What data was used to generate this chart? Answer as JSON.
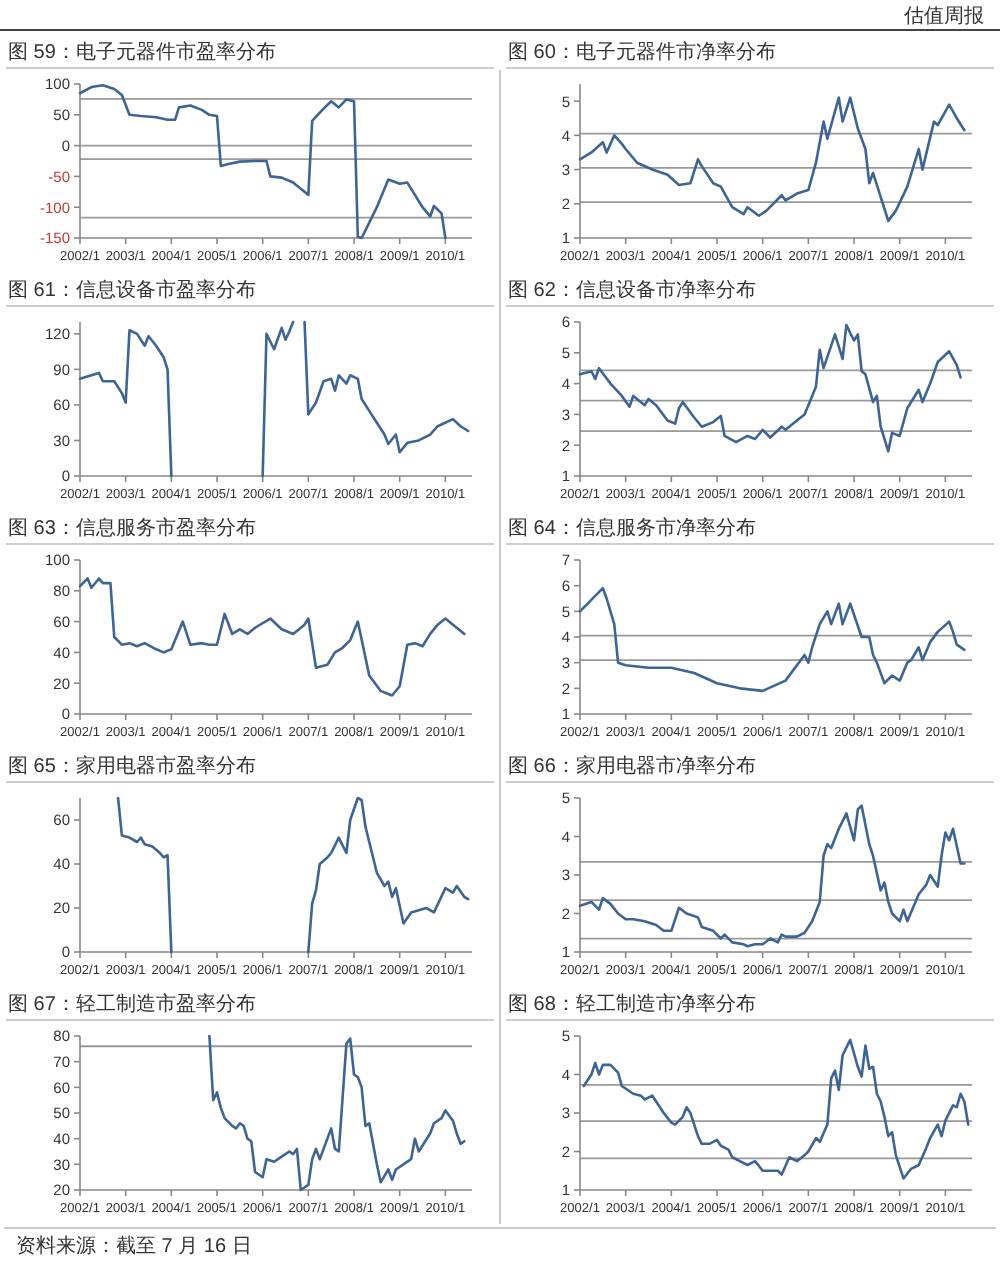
{
  "chart_data": [
    {
      "type": "line",
      "title": "图 59：电子元器件市盈率分布",
      "annotations": [
        "估值周报"
      ],
      "x": [
        "2002-01",
        "2002-04",
        "2002-07",
        "2002-10",
        "2002-12",
        "2003-02",
        "2003-05",
        "2003-09",
        "2003-12",
        "2004-02",
        "2004-03",
        "2004-06",
        "2004-09",
        "2004-11",
        "2005-01",
        "2005-02",
        "2005-04",
        "2005-07",
        "2005-11",
        "2006-02",
        "2006-03",
        "2006-06",
        "2006-09",
        "2006-11",
        "2007-01",
        "2007-02",
        "2007-05",
        "2007-07",
        "2007-09",
        "2007-11",
        "2008-01",
        "2008-02",
        "2008-03",
        "2008-05",
        "2008-07",
        "2008-08",
        "2008-10",
        "2009-01",
        "2009-03",
        "2009-05",
        "2009-07",
        "2009-09",
        "2009-10",
        "2009-12",
        "2010-01"
      ],
      "series": [
        {
          "color": "#3c6496",
          "values": [
            85,
            95,
            98,
            92,
            82,
            50,
            48,
            46,
            42,
            42,
            62,
            65,
            58,
            50,
            48,
            -33,
            -30,
            -26,
            -25,
            -25,
            -50,
            -52,
            -60,
            -70,
            -80,
            40,
            60,
            72,
            62,
            75,
            72,
            -148,
            -150,
            -125,
            -100,
            -85,
            -55,
            -62,
            -60,
            -80,
            -100,
            -115,
            -98,
            -110,
            -150
          ]
        }
      ],
      "xlim": [
        "2002-01",
        "2010-08"
      ],
      "ylim": [
        -150,
        100
      ],
      "yticks": [
        -150,
        -100,
        -50,
        0,
        50,
        100
      ],
      "xticks": [
        {
          "value": "2002-01",
          "label": "2002/1"
        },
        {
          "value": "2003-01",
          "label": "2003/1"
        },
        {
          "value": "2004-01",
          "label": "2004/1"
        },
        {
          "value": "2005-01",
          "label": "2005/1"
        },
        {
          "value": "2006-01",
          "label": "2006/1"
        },
        {
          "value": "2007-01",
          "label": "2007/1"
        },
        {
          "value": "2008-01",
          "label": "2008/1"
        },
        {
          "value": "2009-01",
          "label": "2009/1"
        },
        {
          "value": "2010-01",
          "label": "2010/1"
        }
      ],
      "ref_lines": [
        {
          "axis": "y",
          "value": 76
        },
        {
          "axis": "y",
          "value": 0
        },
        {
          "axis": "y",
          "value": -22
        },
        {
          "axis": "y",
          "value": -117
        }
      ]
    },
    {
      "type": "line",
      "title": "图 60：电子元器件市净率分布",
      "x": [
        "2002-01",
        "2002-04",
        "2002-07",
        "2002-08",
        "2002-10",
        "2002-12",
        "2003-01",
        "2003-04",
        "2003-08",
        "2003-12",
        "2004-03",
        "2004-06",
        "2004-08",
        "2004-09",
        "2004-12",
        "2005-02",
        "2005-05",
        "2005-08",
        "2005-09",
        "2005-12",
        "2006-02",
        "2006-06",
        "2006-07",
        "2006-10",
        "2007-01",
        "2007-03",
        "2007-05",
        "2007-06",
        "2007-09",
        "2007-10",
        "2007-12",
        "2008-02",
        "2008-04",
        "2008-05",
        "2008-06",
        "2008-10",
        "2008-12",
        "2009-03",
        "2009-06",
        "2009-07",
        "2009-10",
        "2009-11",
        "2010-02",
        "2010-04",
        "2010-06"
      ],
      "series": [
        {
          "color": "#3c6496",
          "values": [
            3.3,
            3.5,
            3.8,
            3.5,
            4.0,
            3.75,
            3.6,
            3.2,
            3.0,
            2.85,
            2.55,
            2.6,
            3.3,
            3.1,
            2.6,
            2.5,
            1.9,
            1.7,
            1.9,
            1.65,
            1.8,
            2.25,
            2.1,
            2.3,
            2.4,
            3.2,
            4.4,
            3.9,
            5.1,
            4.4,
            5.1,
            4.2,
            3.6,
            2.6,
            2.9,
            1.5,
            1.8,
            2.5,
            3.6,
            3.0,
            4.4,
            4.3,
            4.9,
            4.5,
            4.15
          ]
        }
      ],
      "xlim": [
        "2002-01",
        "2010-08"
      ],
      "ylim": [
        1,
        5.5
      ],
      "yticks": [
        1,
        2,
        3,
        4,
        5
      ],
      "xticks": [
        {
          "value": "2002-01",
          "label": "2002/1"
        },
        {
          "value": "2003-01",
          "label": "2003/1"
        },
        {
          "value": "2004-01",
          "label": "2004/1"
        },
        {
          "value": "2005-01",
          "label": "2005/1"
        },
        {
          "value": "2006-01",
          "label": "2006/1"
        },
        {
          "value": "2007-01",
          "label": "2007/1"
        },
        {
          "value": "2008-01",
          "label": "2008/1"
        },
        {
          "value": "2009-01",
          "label": "2009/1"
        },
        {
          "value": "2010-01",
          "label": "2010/1"
        }
      ],
      "ref_lines": [
        {
          "axis": "y",
          "value": 4.05
        },
        {
          "axis": "y",
          "value": 3.05
        },
        {
          "axis": "y",
          "value": 2.05
        }
      ]
    },
    {
      "type": "line",
      "title": "图 61：信息设备市盈率分布",
      "series": [
        {
          "color": "#3c6496",
          "x": [
            "2002-01",
            "2002-04",
            "2002-06",
            "2002-07",
            "2002-10",
            "2002-12",
            "2003-01",
            "2003-02",
            "2003-04",
            "2003-06",
            "2003-07",
            "2003-09",
            "2003-11",
            "2003-12",
            "2004-01"
          ],
          "values": [
            82,
            85,
            87,
            80,
            80,
            70,
            62,
            123,
            120,
            110,
            118,
            110,
            100,
            90,
            0
          ]
        },
        {
          "color": "#3c6496",
          "x": [
            "2006-01",
            "2006-02",
            "2006-04",
            "2006-06",
            "2006-07",
            "2006-08",
            "2006-09"
          ],
          "values": [
            0,
            120,
            107,
            125,
            115,
            122,
            130
          ]
        },
        {
          "color": "#3c6496",
          "x": [
            "2006-12",
            "2007-01",
            "2007-03",
            "2007-05",
            "2007-07",
            "2007-08",
            "2007-09",
            "2007-11",
            "2007-12",
            "2008-02",
            "2008-03",
            "2008-05",
            "2008-07",
            "2008-09",
            "2008-10",
            "2008-12",
            "2009-01",
            "2009-03",
            "2009-06",
            "2009-09",
            "2009-11",
            "2010-03",
            "2010-05",
            "2010-07"
          ],
          "values": [
            130,
            52,
            62,
            80,
            82,
            72,
            85,
            78,
            85,
            82,
            65,
            55,
            45,
            35,
            27,
            35,
            20,
            28,
            30,
            35,
            42,
            48,
            42,
            38
          ]
        }
      ],
      "xlim": [
        "2002-01",
        "2010-08"
      ],
      "ylim": [
        0,
        130
      ],
      "yticks": [
        0,
        30,
        60,
        90,
        120
      ],
      "xticks": [
        {
          "value": "2002-01",
          "label": "2002/1"
        },
        {
          "value": "2003-01",
          "label": "2003/1"
        },
        {
          "value": "2004-01",
          "label": "2004/1"
        },
        {
          "value": "2005-01",
          "label": "2005/1"
        },
        {
          "value": "2006-01",
          "label": "2006/1"
        },
        {
          "value": "2007-01",
          "label": "2007/1"
        },
        {
          "value": "2008-01",
          "label": "2008/1"
        },
        {
          "value": "2009-01",
          "label": "2009/1"
        },
        {
          "value": "2010-01",
          "label": "2010/1"
        }
      ]
    },
    {
      "type": "line",
      "title": "图 62：信息设备市净率分布",
      "x": [
        "2002-01",
        "2002-04",
        "2002-05",
        "2002-06",
        "2002-09",
        "2002-12",
        "2003-02",
        "2003-03",
        "2003-06",
        "2003-07",
        "2003-09",
        "2003-12",
        "2004-02",
        "2004-03",
        "2004-04",
        "2004-07",
        "2004-09",
        "2004-12",
        "2005-02",
        "2005-03",
        "2005-06",
        "2005-09",
        "2005-11",
        "2006-01",
        "2006-03",
        "2006-06",
        "2006-07",
        "2006-10",
        "2006-12",
        "2007-03",
        "2007-04",
        "2007-05",
        "2007-08",
        "2007-10",
        "2007-11",
        "2008-01",
        "2008-02",
        "2008-03",
        "2008-04",
        "2008-06",
        "2008-07",
        "2008-08",
        "2008-10",
        "2008-11",
        "2009-01",
        "2009-03",
        "2009-06",
        "2009-07",
        "2009-09",
        "2009-11",
        "2010-02",
        "2010-04",
        "2010-05"
      ],
      "series": [
        {
          "color": "#3c6496",
          "values": [
            4.3,
            4.4,
            4.15,
            4.5,
            4.0,
            3.6,
            3.25,
            3.6,
            3.3,
            3.5,
            3.3,
            2.8,
            2.7,
            3.2,
            3.4,
            2.9,
            2.6,
            2.75,
            2.95,
            2.3,
            2.1,
            2.3,
            2.2,
            2.5,
            2.25,
            2.6,
            2.5,
            2.8,
            3.0,
            3.9,
            5.1,
            4.5,
            5.6,
            4.8,
            5.9,
            5.4,
            5.6,
            4.4,
            4.3,
            3.4,
            3.6,
            2.6,
            1.8,
            2.4,
            2.3,
            3.2,
            3.8,
            3.4,
            4.0,
            4.7,
            5.05,
            4.6,
            4.2
          ]
        }
      ],
      "xlim": [
        "2002-01",
        "2010-08"
      ],
      "ylim": [
        1,
        6
      ],
      "yticks": [
        1,
        2,
        3,
        4,
        5,
        6
      ],
      "xticks": [
        {
          "value": "2002-01",
          "label": "2002/1"
        },
        {
          "value": "2003-01",
          "label": "2003/1"
        },
        {
          "value": "2004-01",
          "label": "2004/1"
        },
        {
          "value": "2005-01",
          "label": "2005/1"
        },
        {
          "value": "2006-01",
          "label": "2006/1"
        },
        {
          "value": "2007-01",
          "label": "2007/1"
        },
        {
          "value": "2008-01",
          "label": "2008/1"
        },
        {
          "value": "2009-01",
          "label": "2009/1"
        },
        {
          "value": "2010-01",
          "label": "2010/1"
        }
      ],
      "ref_lines": [
        {
          "axis": "y",
          "value": 4.43
        },
        {
          "axis": "y",
          "value": 3.45
        },
        {
          "axis": "y",
          "value": 2.46
        }
      ]
    },
    {
      "type": "line",
      "title": "图 63：信息服务市盈率分布",
      "x": [
        "2002-01",
        "2002-03",
        "2002-04",
        "2002-06",
        "2002-07",
        "2002-09",
        "2002-10",
        "2002-12",
        "2003-02",
        "2003-04",
        "2003-06",
        "2003-09",
        "2003-11",
        "2004-01",
        "2004-04",
        "2004-06",
        "2004-09",
        "2004-11",
        "2005-01",
        "2005-03",
        "2005-05",
        "2005-07",
        "2005-09",
        "2005-11",
        "2006-03",
        "2006-06",
        "2006-09",
        "2006-12",
        "2007-01",
        "2007-03",
        "2007-06",
        "2007-08",
        "2007-10",
        "2007-12",
        "2008-02",
        "2008-05",
        "2008-08",
        "2008-11",
        "2009-01",
        "2009-03",
        "2009-05",
        "2009-07",
        "2009-09",
        "2009-11",
        "2010-01",
        "2010-03",
        "2010-06"
      ],
      "series": [
        {
          "color": "#3c6496",
          "values": [
            83,
            88,
            82,
            88,
            85,
            85,
            50,
            45,
            46,
            44,
            46,
            42,
            40,
            42,
            60,
            45,
            46,
            45,
            45,
            65,
            52,
            55,
            52,
            56,
            62,
            55,
            52,
            58,
            62,
            30,
            32,
            40,
            43,
            48,
            60,
            25,
            15,
            12,
            18,
            45,
            46,
            44,
            52,
            58,
            62,
            58,
            52
          ]
        }
      ],
      "xlim": [
        "2002-01",
        "2010-08"
      ],
      "ylim": [
        0,
        100
      ],
      "yticks": [
        0,
        20,
        40,
        60,
        80,
        100
      ],
      "xticks": [
        {
          "value": "2002-01",
          "label": "2002/1"
        },
        {
          "value": "2003-01",
          "label": "2003/1"
        },
        {
          "value": "2004-01",
          "label": "2004/1"
        },
        {
          "value": "2005-01",
          "label": "2005/1"
        },
        {
          "value": "2006-01",
          "label": "2006/1"
        },
        {
          "value": "2007-01",
          "label": "2007/1"
        },
        {
          "value": "2008-01",
          "label": "2008/1"
        },
        {
          "value": "2009-01",
          "label": "2009/1"
        },
        {
          "value": "2010-01",
          "label": "2010/1"
        }
      ]
    },
    {
      "type": "line",
      "title": "图 64：信息服务市净率分布",
      "x": [
        "2002-01",
        "2002-03",
        "2002-05",
        "2002-07",
        "2002-08",
        "2002-10",
        "2002-11",
        "2003-01",
        "2003-07",
        "2004-01",
        "2004-07",
        "2005-01",
        "2005-07",
        "2006-01",
        "2006-07",
        "2006-12",
        "2007-01",
        "2007-02",
        "2007-04",
        "2007-06",
        "2007-07",
        "2007-09",
        "2007-10",
        "2007-12",
        "2008-03",
        "2008-05",
        "2008-06",
        "2008-07",
        "2008-09",
        "2008-11",
        "2009-01",
        "2009-03",
        "2009-04",
        "2009-06",
        "2009-07",
        "2009-09",
        "2009-11",
        "2010-02",
        "2010-03",
        "2010-04",
        "2010-06"
      ],
      "series": [
        {
          "color": "#3c6496",
          "values": [
            5.0,
            5.3,
            5.6,
            5.9,
            5.5,
            4.5,
            3.0,
            2.9,
            2.8,
            2.8,
            2.6,
            2.2,
            2.0,
            1.9,
            2.3,
            3.3,
            3.0,
            3.6,
            4.5,
            5.0,
            4.5,
            5.3,
            4.5,
            5.3,
            4.0,
            4.0,
            3.3,
            3.0,
            2.2,
            2.5,
            2.3,
            3.0,
            3.1,
            3.6,
            3.1,
            3.8,
            4.2,
            4.6,
            4.2,
            3.7,
            3.5
          ]
        }
      ],
      "xlim": [
        "2002-01",
        "2010-08"
      ],
      "ylim": [
        1,
        7
      ],
      "yticks": [
        1,
        2,
        3,
        4,
        5,
        6,
        7
      ],
      "xticks": [
        {
          "value": "2002-01",
          "label": "2002/1"
        },
        {
          "value": "2003-01",
          "label": "2003/1"
        },
        {
          "value": "2004-01",
          "label": "2004/1"
        },
        {
          "value": "2005-01",
          "label": "2005/1"
        },
        {
          "value": "2006-01",
          "label": "2006/1"
        },
        {
          "value": "2007-01",
          "label": "2007/1"
        },
        {
          "value": "2008-01",
          "label": "2008/1"
        },
        {
          "value": "2009-01",
          "label": "2009/1"
        },
        {
          "value": "2010-01",
          "label": "2010/1"
        }
      ],
      "ref_lines": [
        {
          "axis": "y",
          "value": 4.05
        },
        {
          "axis": "y",
          "value": 3.1
        }
      ]
    },
    {
      "type": "line",
      "title": "图 65：家用电器市盈率分布",
      "series": [
        {
          "color": "#3c6496",
          "x": [
            "2002-11",
            "2002-12",
            "2003-02",
            "2003-04",
            "2003-05",
            "2003-06",
            "2003-08",
            "2003-10",
            "2003-11",
            "2003-12",
            "2004-01"
          ],
          "values": [
            70,
            53,
            52,
            50,
            52,
            49,
            48,
            45,
            43,
            44,
            0
          ]
        },
        {
          "color": "#3c6496",
          "x": [
            "2007-01",
            "2007-02",
            "2007-03",
            "2007-04",
            "2007-06",
            "2007-07",
            "2007-09",
            "2007-11",
            "2007-12",
            "2008-02",
            "2008-03",
            "2008-04",
            "2008-05",
            "2008-07",
            "2008-09",
            "2008-10",
            "2008-11",
            "2008-12",
            "2009-02",
            "2009-04",
            "2009-08",
            "2009-10",
            "2010-01",
            "2010-03",
            "2010-04",
            "2010-06",
            "2010-07"
          ],
          "values": [
            0,
            22,
            28,
            40,
            43,
            45,
            52,
            45,
            60,
            70,
            69,
            57,
            50,
            36,
            30,
            32,
            25,
            29,
            13,
            18,
            20,
            18,
            29,
            27,
            30,
            25,
            24
          ]
        }
      ],
      "xlim": [
        "2002-01",
        "2010-08"
      ],
      "ylim": [
        0,
        70
      ],
      "yticks": [
        0,
        20,
        40,
        60
      ],
      "xticks": [
        {
          "value": "2002-01",
          "label": "2002/1"
        },
        {
          "value": "2003-01",
          "label": "2003/1"
        },
        {
          "value": "2004-01",
          "label": "2004/1"
        },
        {
          "value": "2005-01",
          "label": "2005/1"
        },
        {
          "value": "2006-01",
          "label": "2006/1"
        },
        {
          "value": "2007-01",
          "label": "2007/1"
        },
        {
          "value": "2008-01",
          "label": "2008/1"
        },
        {
          "value": "2009-01",
          "label": "2009/1"
        },
        {
          "value": "2010-01",
          "label": "2010/1"
        }
      ]
    },
    {
      "type": "line",
      "title": "图 66：家用电器市净率分布",
      "x": [
        "2002-01",
        "2002-04",
        "2002-06",
        "2002-07",
        "2002-09",
        "2002-11",
        "2003-01",
        "2003-03",
        "2003-06",
        "2003-09",
        "2003-11",
        "2004-01",
        "2004-03",
        "2004-05",
        "2004-08",
        "2004-09",
        "2004-12",
        "2005-02",
        "2005-03",
        "2005-05",
        "2005-08",
        "2005-09",
        "2005-11",
        "2006-01",
        "2006-03",
        "2006-05",
        "2006-06",
        "2006-07",
        "2006-10",
        "2006-12",
        "2007-02",
        "2007-04",
        "2007-05",
        "2007-06",
        "2007-07",
        "2007-09",
        "2007-11",
        "2008-01",
        "2008-02",
        "2008-03",
        "2008-05",
        "2008-06",
        "2008-08",
        "2008-09",
        "2008-10",
        "2008-11",
        "2009-01",
        "2009-02",
        "2009-03",
        "2009-06",
        "2009-08",
        "2009-09",
        "2009-11",
        "2009-12",
        "2010-01",
        "2010-02",
        "2010-03",
        "2010-05",
        "2010-06"
      ],
      "series": [
        {
          "color": "#3c6496",
          "values": [
            2.2,
            2.3,
            2.1,
            2.4,
            2.25,
            2.0,
            1.85,
            1.85,
            1.8,
            1.7,
            1.55,
            1.55,
            2.15,
            2.0,
            1.9,
            1.65,
            1.55,
            1.35,
            1.45,
            1.25,
            1.2,
            1.15,
            1.2,
            1.2,
            1.35,
            1.25,
            1.45,
            1.4,
            1.4,
            1.5,
            1.8,
            2.3,
            3.5,
            3.8,
            3.7,
            4.2,
            4.6,
            3.9,
            4.7,
            4.8,
            3.8,
            3.5,
            2.6,
            2.8,
            2.3,
            2.0,
            1.8,
            2.1,
            1.8,
            2.5,
            2.75,
            3.0,
            2.7,
            3.5,
            4.1,
            3.9,
            4.2,
            3.3,
            3.3
          ]
        }
      ],
      "xlim": [
        "2002-01",
        "2010-08"
      ],
      "ylim": [
        1,
        5
      ],
      "yticks": [
        1,
        2,
        3,
        4,
        5
      ],
      "xticks": [
        {
          "value": "2002-01",
          "label": "2002/1"
        },
        {
          "value": "2003-01",
          "label": "2003/1"
        },
        {
          "value": "2004-01",
          "label": "2004/1"
        },
        {
          "value": "2005-01",
          "label": "2005/1"
        },
        {
          "value": "2006-01",
          "label": "2006/1"
        },
        {
          "value": "2007-01",
          "label": "2007/1"
        },
        {
          "value": "2008-01",
          "label": "2008/1"
        },
        {
          "value": "2009-01",
          "label": "2009/1"
        },
        {
          "value": "2010-01",
          "label": "2010/1"
        }
      ],
      "ref_lines": [
        {
          "axis": "y",
          "value": 3.34
        },
        {
          "axis": "y",
          "value": 2.35
        },
        {
          "axis": "y",
          "value": 1.35
        }
      ]
    },
    {
      "type": "line",
      "title": "图 67：轻工制造市盈率分布",
      "x": [
        "2004-11",
        "2004-12",
        "2005-01",
        "2005-02",
        "2005-03",
        "2005-05",
        "2005-06",
        "2005-07",
        "2005-08",
        "2005-09",
        "2005-10",
        "2005-11",
        "2006-01",
        "2006-02",
        "2006-04",
        "2006-06",
        "2006-08",
        "2006-09",
        "2006-10",
        "2006-11",
        "2007-01",
        "2007-02",
        "2007-03",
        "2007-04",
        "2007-06",
        "2007-07",
        "2007-08",
        "2007-09",
        "2007-11",
        "2007-12",
        "2008-01",
        "2008-02",
        "2008-03",
        "2008-04",
        "2008-05",
        "2008-06",
        "2008-07",
        "2008-08",
        "2008-10",
        "2008-11",
        "2008-12",
        "2009-04",
        "2009-05",
        "2009-06",
        "2009-09",
        "2009-10",
        "2009-12",
        "2010-01",
        "2010-03",
        "2010-04",
        "2010-05",
        "2010-06"
      ],
      "series": [
        {
          "color": "#3c6496",
          "values": [
            80,
            55,
            58,
            52,
            48,
            45,
            44,
            46,
            45,
            40,
            39,
            27,
            25,
            32,
            31,
            33,
            35,
            34,
            36,
            20,
            22,
            32,
            36,
            32,
            40,
            44,
            36,
            35,
            77,
            79,
            65,
            64,
            60,
            45,
            46,
            38,
            30,
            23,
            28,
            24,
            28,
            32,
            40,
            35,
            42,
            46,
            48,
            51,
            47,
            42,
            38,
            39
          ]
        }
      ],
      "xlim": [
        "2002-01",
        "2010-08"
      ],
      "ylim": [
        20,
        80
      ],
      "yticks": [
        20,
        30,
        40,
        50,
        60,
        70,
        80
      ],
      "xticks": [
        {
          "value": "2002-01",
          "label": "2002/1"
        },
        {
          "value": "2003-01",
          "label": "2003/1"
        },
        {
          "value": "2004-01",
          "label": "2004/1"
        },
        {
          "value": "2005-01",
          "label": "2005/1"
        },
        {
          "value": "2006-01",
          "label": "2006/1"
        },
        {
          "value": "2007-01",
          "label": "2007/1"
        },
        {
          "value": "2008-01",
          "label": "2008/1"
        },
        {
          "value": "2009-01",
          "label": "2009/1"
        },
        {
          "value": "2010-01",
          "label": "2010/1"
        }
      ],
      "ref_lines": [
        {
          "axis": "y",
          "value": 76
        }
      ]
    },
    {
      "type": "line",
      "title": "图 68：轻工制造市净率分布",
      "annotations": [
        "资料来源：截至 7 月 16 日"
      ],
      "x": [
        "2002-02",
        "2002-04",
        "2002-05",
        "2002-06",
        "2002-07",
        "2002-09",
        "2002-11",
        "2002-12",
        "2003-03",
        "2003-05",
        "2003-06",
        "2003-08",
        "2003-09",
        "2003-11",
        "2004-01",
        "2004-02",
        "2004-04",
        "2004-05",
        "2004-06",
        "2004-08",
        "2004-09",
        "2004-11",
        "2005-01",
        "2005-02",
        "2005-04",
        "2005-05",
        "2005-07",
        "2005-09",
        "2005-11",
        "2006-01",
        "2006-05",
        "2006-06",
        "2006-08",
        "2006-10",
        "2006-12",
        "2007-01",
        "2007-03",
        "2007-04",
        "2007-06",
        "2007-07",
        "2007-08",
        "2007-09",
        "2007-10",
        "2007-12",
        "2008-02",
        "2008-03",
        "2008-04",
        "2008-05",
        "2008-06",
        "2008-07",
        "2008-08",
        "2008-09",
        "2008-10",
        "2008-11",
        "2008-12",
        "2009-01",
        "2009-02",
        "2009-04",
        "2009-06",
        "2009-08",
        "2009-09",
        "2009-11",
        "2009-12",
        "2010-01",
        "2010-03",
        "2010-04",
        "2010-05",
        "2010-06",
        "2010-07"
      ],
      "series": [
        {
          "color": "#3c6496",
          "values": [
            3.7,
            4.0,
            4.3,
            4.0,
            4.25,
            4.25,
            4.05,
            3.7,
            3.5,
            3.45,
            3.35,
            3.45,
            3.3,
            3.0,
            2.75,
            2.7,
            2.9,
            3.15,
            3.0,
            2.4,
            2.2,
            2.2,
            2.3,
            2.15,
            2.05,
            1.85,
            1.75,
            1.65,
            1.75,
            1.5,
            1.5,
            1.4,
            1.85,
            1.75,
            1.9,
            2.0,
            2.35,
            2.25,
            2.7,
            3.9,
            4.1,
            3.6,
            4.5,
            4.9,
            4.2,
            3.95,
            4.75,
            4.15,
            4.2,
            3.5,
            3.3,
            2.9,
            2.4,
            2.5,
            1.9,
            1.6,
            1.3,
            1.55,
            1.65,
            2.1,
            2.35,
            2.7,
            2.4,
            2.8,
            3.2,
            3.15,
            3.5,
            3.3,
            2.7
          ]
        }
      ],
      "xlim": [
        "2002-01",
        "2010-08"
      ],
      "ylim": [
        1,
        5
      ],
      "yticks": [
        1,
        2,
        3,
        4,
        5
      ],
      "xticks": [
        {
          "value": "2002-01",
          "label": "2002/1"
        },
        {
          "value": "2003-01",
          "label": "2003/1"
        },
        {
          "value": "2004-01",
          "label": "2004/1"
        },
        {
          "value": "2005-01",
          "label": "2005/1"
        },
        {
          "value": "2006-01",
          "label": "2006/1"
        },
        {
          "value": "2007-01",
          "label": "2007/1"
        },
        {
          "value": "2008-01",
          "label": "2008/1"
        },
        {
          "value": "2009-01",
          "label": "2009/1"
        },
        {
          "value": "2010-01",
          "label": "2010/1"
        }
      ],
      "ref_lines": [
        {
          "axis": "y",
          "value": 3.73
        },
        {
          "axis": "y",
          "value": 2.79
        },
        {
          "axis": "y",
          "value": 1.82
        }
      ]
    }
  ]
}
